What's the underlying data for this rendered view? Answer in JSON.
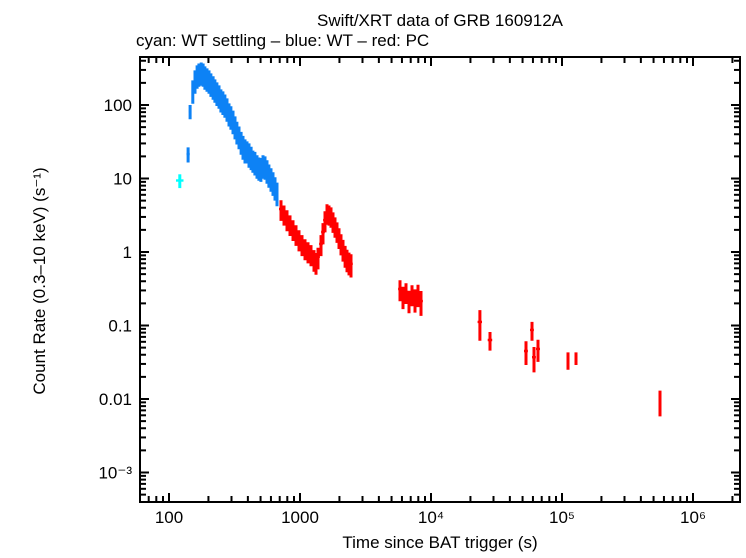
{
  "header": {
    "title": "Swift/XRT data of GRB 160912A",
    "subtitle": "cyan: WT settling – blue: WT – red: PC"
  },
  "chart_data": {
    "type": "scatter",
    "title": "Swift/XRT data of GRB 160912A",
    "legend_note": "cyan: WT settling – blue: WT – red: PC",
    "xlabel": "Time since BAT trigger (s)",
    "ylabel": "Count Rate (0.3–10 keV) (s⁻¹)",
    "xscale": "log",
    "yscale": "log",
    "xlim": [
      60,
      2300000
    ],
    "ylim": [
      0.0004,
      450
    ],
    "grid": false,
    "xticks": {
      "values": [
        100,
        1000,
        10000,
        100000,
        1000000
      ],
      "labels": [
        "100",
        "1000",
        "10⁴",
        "10⁵",
        "10⁶"
      ]
    },
    "yticks": {
      "values": [
        100,
        10,
        1,
        0.1,
        0.01,
        0.001
      ],
      "labels": [
        "100",
        "10",
        "1",
        "0.1",
        "0.01",
        "10⁻³"
      ]
    },
    "point_format": [
      "time_s",
      "time_err_s",
      "rate",
      "rate_err"
    ],
    "colors": {
      "wt_settling": "#00ffff",
      "wt": "#0d82f5",
      "pc": "#ff0000",
      "frame": "#000000"
    },
    "series": [
      {
        "name": "WT settling",
        "mode": "WT settling",
        "color": "#00ffff",
        "points": [
          [
            121,
            8,
            9.4,
            2.0
          ]
        ]
      },
      {
        "name": "WT",
        "mode": "WT",
        "color": "#0d82f5",
        "points": [
          [
            140,
            4,
            21.5,
            5
          ],
          [
            145,
            3,
            82,
            18
          ],
          [
            152,
            3,
            160,
            56
          ],
          [
            158,
            3,
            219,
            77
          ],
          [
            164,
            3,
            256,
            90
          ],
          [
            169,
            3,
            272,
            95
          ],
          [
            176,
            3,
            281,
            98
          ],
          [
            182,
            4,
            272,
            95
          ],
          [
            188,
            4,
            248,
            87
          ],
          [
            195,
            4,
            233,
            82
          ],
          [
            202,
            4,
            219,
            77
          ],
          [
            209,
            4,
            199,
            70
          ],
          [
            217,
            4,
            182,
            64
          ],
          [
            224,
            5,
            165,
            58
          ],
          [
            232,
            5,
            150,
            53
          ],
          [
            241,
            5,
            137,
            48
          ],
          [
            249,
            5,
            121,
            42
          ],
          [
            258,
            5,
            113,
            40
          ],
          [
            267,
            5,
            103,
            36
          ],
          [
            277,
            6,
            91,
            32
          ],
          [
            287,
            6,
            78,
            27
          ],
          [
            297,
            6,
            71,
            25
          ],
          [
            308,
            6,
            62,
            22
          ],
          [
            319,
            7,
            52,
            18
          ],
          [
            330,
            7,
            44,
            15
          ],
          [
            342,
            7,
            38,
            13
          ],
          [
            355,
            7,
            32,
            11
          ],
          [
            367,
            8,
            28,
            10
          ],
          [
            380,
            8,
            25,
            9
          ],
          [
            394,
            8,
            24,
            8
          ],
          [
            408,
            8,
            22,
            8
          ],
          [
            423,
            9,
            20,
            7
          ],
          [
            437,
            9,
            18,
            6
          ],
          [
            453,
            9,
            17,
            6
          ],
          [
            470,
            10,
            15.3,
            5.4
          ],
          [
            486,
            10,
            14.3,
            5
          ],
          [
            503,
            10,
            14.0,
            5
          ],
          [
            522,
            11,
            15.3,
            5.4
          ],
          [
            541,
            11,
            14.8,
            5.2
          ],
          [
            560,
            11,
            13.1,
            4.6
          ],
          [
            579,
            12,
            11.5,
            4.0
          ],
          [
            601,
            12,
            10.2,
            3.6
          ],
          [
            622,
            13,
            9.0,
            3.2
          ],
          [
            644,
            13,
            7.7,
            2.7
          ],
          [
            667,
            13,
            6.5,
            2.3
          ]
        ]
      },
      {
        "name": "PC",
        "mode": "PC",
        "color": "#ff0000",
        "points": [
          [
            716,
            25,
            3.85,
            1.2
          ],
          [
            755,
            25,
            3.29,
            1.0
          ],
          [
            796,
            27,
            2.81,
            0.9
          ],
          [
            839,
            28,
            2.4,
            0.75
          ],
          [
            884,
            30,
            2.06,
            0.65
          ],
          [
            932,
            31,
            1.76,
            0.55
          ],
          [
            982,
            33,
            1.5,
            0.48
          ],
          [
            1035,
            35,
            1.29,
            0.41
          ],
          [
            1091,
            37,
            1.13,
            0.36
          ],
          [
            1151,
            39,
            1.03,
            0.33
          ],
          [
            1213,
            41,
            0.94,
            0.3
          ],
          [
            1279,
            43,
            0.8,
            0.26
          ],
          [
            1324,
            44,
            0.73,
            0.24
          ],
          [
            1372,
            46,
            0.86,
            0.28
          ],
          [
            1446,
            48,
            1.29,
            0.41
          ],
          [
            1499,
            50,
            1.87,
            0.6
          ],
          [
            1552,
            52,
            2.72,
            0.87
          ],
          [
            1608,
            54,
            3.4,
            1.05
          ],
          [
            1664,
            56,
            3.29,
            1.0
          ],
          [
            1725,
            58,
            3.09,
            0.95
          ],
          [
            1787,
            60,
            2.64,
            0.82
          ],
          [
            1850,
            62,
            2.26,
            0.7
          ],
          [
            1915,
            64,
            1.93,
            0.6
          ],
          [
            1986,
            66,
            1.6,
            0.5
          ],
          [
            2056,
            69,
            1.32,
            0.42
          ],
          [
            2128,
            71,
            1.1,
            0.36
          ],
          [
            2208,
            74,
            0.91,
            0.3
          ],
          [
            2286,
            76,
            0.8,
            0.27
          ],
          [
            2366,
            79,
            0.73,
            0.25
          ],
          [
            2449,
            82,
            0.69,
            0.24
          ],
          [
            5794,
            190,
            0.314,
            0.1
          ],
          [
            6110,
            200,
            0.252,
            0.085
          ],
          [
            6442,
            215,
            0.286,
            0.09
          ],
          [
            6792,
            225,
            0.222,
            0.075
          ],
          [
            7161,
            240,
            0.268,
            0.085
          ],
          [
            7551,
            250,
            0.23,
            0.08
          ],
          [
            7962,
            265,
            0.268,
            0.09
          ],
          [
            8395,
            280,
            0.215,
            0.08
          ],
          [
            23600,
            900,
            0.112,
            0.05
          ],
          [
            28200,
            1100,
            0.0635,
            0.018
          ],
          [
            53100,
            1800,
            0.045,
            0.016
          ],
          [
            59000,
            2000,
            0.087,
            0.025
          ],
          [
            61100,
            2100,
            0.037,
            0.014
          ],
          [
            65600,
            2300,
            0.048,
            0.016
          ],
          [
            111200,
            2500,
            0.034,
            0.009
          ],
          [
            127900,
            2500,
            0.036,
            0.007
          ],
          [
            560000,
            8000,
            0.0094,
            0.0036
          ]
        ]
      }
    ]
  }
}
